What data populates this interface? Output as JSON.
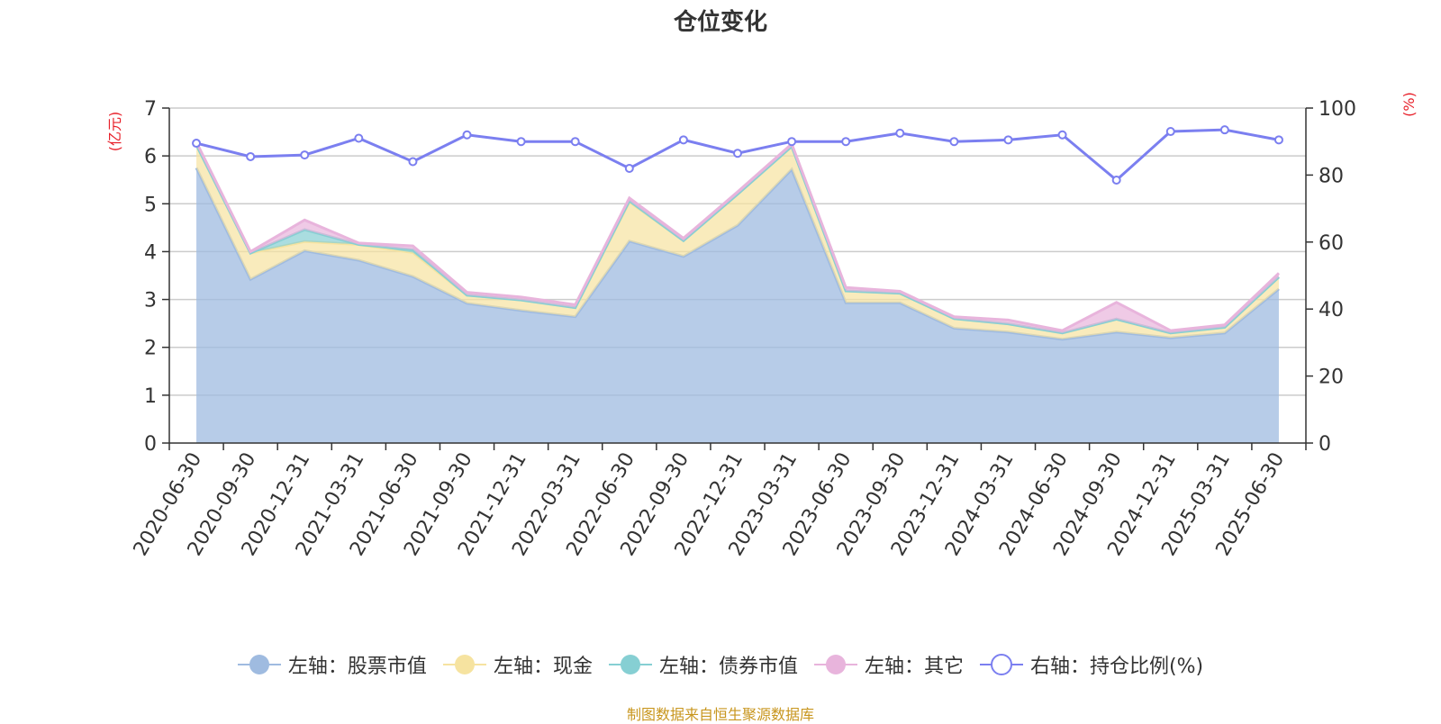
{
  "title": "仓位变化",
  "source_note": "制图数据来自恒生聚源数据库",
  "chart_data": {
    "type": "area",
    "categories": [
      "2020-06-30",
      "2020-09-30",
      "2020-12-31",
      "2021-03-31",
      "2021-06-30",
      "2021-09-30",
      "2021-12-31",
      "2022-03-31",
      "2022-06-30",
      "2022-09-30",
      "2022-12-31",
      "2023-03-31",
      "2023-06-30",
      "2023-09-30",
      "2023-12-31",
      "2024-03-31",
      "2024-06-30",
      "2024-09-30",
      "2024-12-31",
      "2025-03-31",
      "2025-06-30"
    ],
    "left_axis": {
      "label": "(亿元)",
      "ylim": [
        0,
        7
      ],
      "ticks": [
        "0",
        "1",
        "2",
        "3",
        "4",
        "5",
        "6",
        "7"
      ]
    },
    "right_axis": {
      "label": "(%)",
      "ylim": [
        0,
        100
      ],
      "ticks": [
        "0",
        "20",
        "40",
        "60",
        "80",
        "100"
      ]
    },
    "grid": true,
    "legend_position": "bottom",
    "stacked_series": [
      {
        "name": "左轴：股票市值",
        "color": "#9fbbe0",
        "values": [
          5.75,
          3.42,
          4.02,
          3.82,
          3.48,
          2.92,
          2.77,
          2.64,
          4.22,
          3.9,
          4.55,
          5.72,
          2.93,
          2.93,
          2.4,
          2.32,
          2.17,
          2.32,
          2.2,
          2.3,
          3.22
        ]
      },
      {
        "name": "左轴：现金",
        "color": "#f6e3a0",
        "values": [
          0.48,
          0.55,
          0.19,
          0.33,
          0.5,
          0.17,
          0.22,
          0.19,
          0.82,
          0.33,
          0.65,
          0.48,
          0.25,
          0.2,
          0.2,
          0.17,
          0.13,
          0.27,
          0.1,
          0.12,
          0.25
        ]
      },
      {
        "name": "左轴：债券市值",
        "color": "#86cfd3",
        "values": [
          0,
          0,
          0.25,
          0.0,
          0.06,
          0,
          0,
          0,
          0.02,
          0,
          0,
          0,
          0,
          0,
          0,
          0,
          0,
          0,
          0,
          0,
          0
        ]
      },
      {
        "name": "左轴：其它",
        "color": "#e8b4dc",
        "values": [
          0.06,
          0.03,
          0.2,
          0.03,
          0.08,
          0.06,
          0.06,
          0.06,
          0.06,
          0.05,
          0.05,
          0.05,
          0.07,
          0.04,
          0.04,
          0.08,
          0.05,
          0.35,
          0.05,
          0.05,
          0.08
        ]
      }
    ],
    "line_series": {
      "name": "右轴：持仓比例(%)",
      "color": "#7b7ff0",
      "values": [
        89.5,
        85.5,
        86.0,
        91.0,
        84.0,
        92.0,
        90.0,
        90.0,
        82.0,
        90.5,
        86.5,
        90.0,
        90.0,
        92.5,
        90.0,
        90.5,
        92.0,
        78.5,
        93.0,
        93.5,
        90.5
      ]
    }
  },
  "legend": [
    {
      "label": "左轴：股票市值",
      "color": "#9fbbe0",
      "icon": "filled-circle"
    },
    {
      "label": "左轴：现金",
      "color": "#f6e3a0",
      "icon": "filled-circle"
    },
    {
      "label": "左轴：债券市值",
      "color": "#86cfd3",
      "icon": "filled-circle"
    },
    {
      "label": "左轴：其它",
      "color": "#e8b4dc",
      "icon": "filled-circle"
    },
    {
      "label": "右轴：持仓比例(%)",
      "color": "#7b7ff0",
      "icon": "hollow-circle"
    }
  ]
}
